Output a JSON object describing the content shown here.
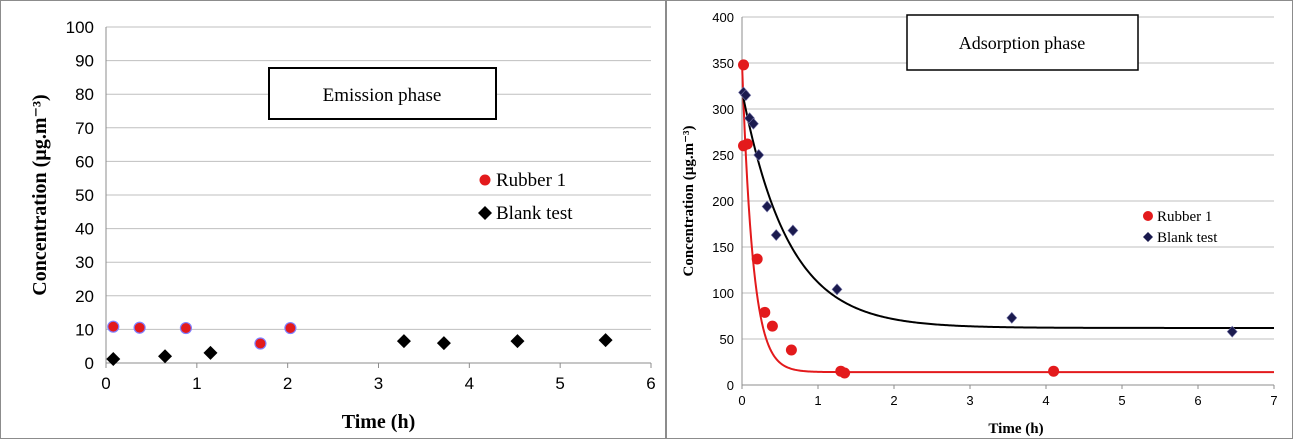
{
  "chart_data": [
    {
      "type": "scatter",
      "title": "Emission phase",
      "xlabel": "Time (h)",
      "ylabel": "Concentration (µg.m⁻³)",
      "xlim": [
        0,
        6
      ],
      "ylim": [
        0,
        100
      ],
      "x_ticks": [
        0,
        1,
        2,
        3,
        4,
        5,
        6
      ],
      "y_ticks": [
        0,
        10,
        20,
        30,
        40,
        50,
        60,
        70,
        80,
        90,
        100
      ],
      "grid": "horizontal",
      "legend_position": "right",
      "series": [
        {
          "name": "Rubber 1",
          "color": "#e31a1c",
          "marker": "circle",
          "points": [
            [
              0.08,
              10.8
            ],
            [
              0.37,
              10.5
            ],
            [
              0.88,
              10.4
            ],
            [
              1.7,
              5.8
            ],
            [
              2.03,
              10.4
            ]
          ]
        },
        {
          "name": "Blank test",
          "color": "#000000",
          "marker": "diamond",
          "points": [
            [
              0.08,
              1.2
            ],
            [
              0.65,
              2.0
            ],
            [
              1.15,
              3.0
            ],
            [
              3.28,
              6.5
            ],
            [
              3.72,
              5.9
            ],
            [
              4.53,
              6.5
            ],
            [
              5.5,
              6.8
            ]
          ]
        }
      ]
    },
    {
      "type": "scatter",
      "title": "Adsorption phase",
      "xlabel": "Time (h)",
      "ylabel": "Concentration (µg.m⁻³)",
      "xlim": [
        0,
        7
      ],
      "ylim": [
        0,
        400
      ],
      "x_ticks": [
        0,
        1,
        2,
        3,
        4,
        5,
        6,
        7
      ],
      "y_ticks": [
        0,
        50,
        100,
        150,
        200,
        250,
        300,
        350,
        400
      ],
      "grid": "horizontal",
      "legend_position": "right",
      "series": [
        {
          "name": "Rubber 1",
          "color": "#e31a1c",
          "marker": "circle",
          "points": [
            [
              0.02,
              348
            ],
            [
              0.02,
              260
            ],
            [
              0.07,
              262
            ],
            [
              0.2,
              137
            ],
            [
              0.3,
              79
            ],
            [
              0.4,
              64
            ],
            [
              0.65,
              38
            ],
            [
              1.3,
              15
            ],
            [
              1.35,
              13
            ],
            [
              4.1,
              15
            ]
          ],
          "fit_curve": {
            "a": 14,
            "b": 336,
            "k": 7
          }
        },
        {
          "name": "Blank test",
          "color": "#1a1a4e",
          "marker": "diamond",
          "points": [
            [
              0.02,
              318
            ],
            [
              0.05,
              315
            ],
            [
              0.1,
              290
            ],
            [
              0.15,
              284
            ],
            [
              0.22,
              250
            ],
            [
              0.33,
              194
            ],
            [
              0.45,
              163
            ],
            [
              0.67,
              168
            ],
            [
              1.25,
              104
            ],
            [
              3.55,
              73
            ],
            [
              6.45,
              58
            ]
          ],
          "fit_curve": {
            "a": 62,
            "b": 258,
            "k": 1.65
          }
        }
      ]
    }
  ]
}
